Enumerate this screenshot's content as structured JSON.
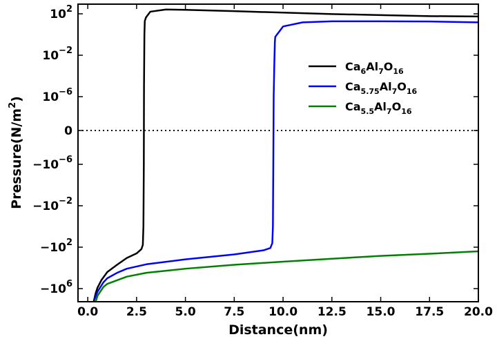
{
  "chart_data": {
    "type": "line",
    "xlabel": "Distance(nm)",
    "ylabel": "Pressure(N/m²)",
    "ylabel_base": "Pressure(N/m",
    "ylabel_sup": "2",
    "ylabel_close": ")",
    "xlim": [
      -0.5,
      20.0
    ],
    "y_scale": "symlog",
    "x_ticks": [
      "0.0",
      "2.5",
      "5.0",
      "7.5",
      "10.0",
      "12.5",
      "15.0",
      "17.5",
      "20.0"
    ],
    "y_ticks": [
      {
        "value": 100,
        "base": "10",
        "exp": "2"
      },
      {
        "value": 0.01,
        "base": "10",
        "exp": "−2"
      },
      {
        "value": 1e-06,
        "base": "10",
        "exp": "−6"
      },
      {
        "value": 0,
        "base": "0",
        "exp": ""
      },
      {
        "value": -1e-06,
        "base": "−10",
        "exp": "−6"
      },
      {
        "value": -0.01,
        "base": "−10",
        "exp": "−2"
      },
      {
        "value": -100,
        "base": "−10",
        "exp": "2"
      },
      {
        "value": -1000000.0,
        "base": "−10",
        "exp": "6"
      }
    ],
    "reference_line": {
      "y": 0,
      "style": "dotted"
    },
    "legend_position": "upper-right",
    "series": [
      {
        "name": "Ca6Al7O16",
        "color": "#000000",
        "points": [
          [
            0.3,
            -20000000.0
          ],
          [
            0.4,
            -3000000.0
          ],
          [
            0.5,
            -800000.0
          ],
          [
            0.7,
            -150000.0
          ],
          [
            1.0,
            -25000.0
          ],
          [
            1.5,
            -5000
          ],
          [
            2.0,
            -1100
          ],
          [
            2.5,
            -400
          ],
          [
            2.75,
            -150
          ],
          [
            2.82,
            -60
          ],
          [
            2.85,
            -1
          ],
          [
            2.87,
            -1e-06
          ],
          [
            2.88,
            1e-05
          ],
          [
            2.9,
            1
          ],
          [
            2.92,
            20
          ],
          [
            2.98,
            45
          ],
          [
            3.2,
            160
          ],
          [
            4.0,
            260
          ],
          [
            5.0,
            240
          ],
          [
            7.5,
            180
          ],
          [
            10.0,
            130
          ],
          [
            12.5,
            95
          ],
          [
            15.0,
            75
          ],
          [
            17.5,
            60
          ],
          [
            20.0,
            55
          ]
        ]
      },
      {
        "name": "Ca5.75Al7O16",
        "color": "#0000ff",
        "points": [
          [
            0.35,
            -10000000.0
          ],
          [
            0.5,
            -2000000.0
          ],
          [
            0.8,
            -250000.0
          ],
          [
            1.0,
            -100000.0
          ],
          [
            1.5,
            -30000.0
          ],
          [
            2.0,
            -12000.0
          ],
          [
            3.0,
            -4500
          ],
          [
            5.0,
            -1500
          ],
          [
            7.5,
            -500
          ],
          [
            9.0,
            -200
          ],
          [
            9.35,
            -120
          ],
          [
            9.45,
            -40
          ],
          [
            9.48,
            -1
          ],
          [
            9.5,
            -1e-06
          ],
          [
            9.52,
            1e-06
          ],
          [
            9.55,
            0.001
          ],
          [
            9.58,
            0.2
          ],
          [
            9.6,
            0.6
          ],
          [
            10.0,
            6
          ],
          [
            11.0,
            15
          ],
          [
            12.5,
            19
          ],
          [
            15.0,
            19
          ],
          [
            17.5,
            18
          ],
          [
            20.0,
            15
          ]
        ]
      },
      {
        "name": "Ca5.5Al7O16",
        "color": "#008000",
        "points": [
          [
            0.4,
            -20000000.0
          ],
          [
            0.5,
            -5000000.0
          ],
          [
            0.8,
            -700000.0
          ],
          [
            1.0,
            -350000.0
          ],
          [
            2.0,
            -70000.0
          ],
          [
            3.0,
            -30000.0
          ],
          [
            5.0,
            -12000.0
          ],
          [
            7.5,
            -5000
          ],
          [
            10.0,
            -2500
          ],
          [
            12.5,
            -1300
          ],
          [
            15.0,
            -700
          ],
          [
            17.5,
            -430
          ],
          [
            20.0,
            -250
          ]
        ]
      }
    ],
    "legend": [
      {
        "color": "#000000",
        "base": "Ca",
        "parts": [
          {
            "t": "6",
            "sub": true
          },
          {
            "t": "Al",
            "sub": false
          },
          {
            "t": "7",
            "sub": true
          },
          {
            "t": "O",
            "sub": false
          },
          {
            "t": "16",
            "sub": true
          }
        ]
      },
      {
        "color": "#0000ff",
        "base": "Ca",
        "parts": [
          {
            "t": "5.75",
            "sub": true
          },
          {
            "t": "Al",
            "sub": false
          },
          {
            "t": "7",
            "sub": true
          },
          {
            "t": "O",
            "sub": false
          },
          {
            "t": "16",
            "sub": true
          }
        ]
      },
      {
        "color": "#008000",
        "base": "Ca",
        "parts": [
          {
            "t": "5.5",
            "sub": true
          },
          {
            "t": "Al",
            "sub": false
          },
          {
            "t": "7",
            "sub": true
          },
          {
            "t": "O",
            "sub": false
          },
          {
            "t": "16",
            "sub": true
          }
        ]
      }
    ]
  }
}
